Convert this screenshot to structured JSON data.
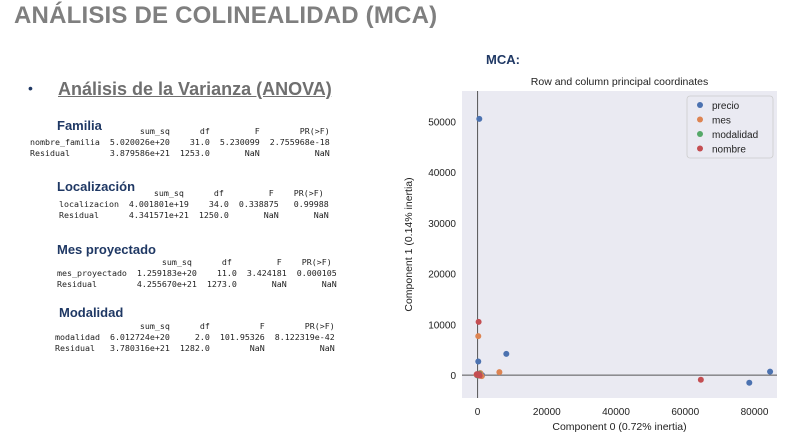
{
  "main_title": "ANÁLISIS DE COLINEALIDAD (MCA)",
  "bullet": "•",
  "subtitle": "Análisis de la Varianza (ANOVA)",
  "sections": [
    {
      "title": "Familia",
      "table": "                      sum_sq      df         F        PR(>F)\nnombre_familia  5.020026e+20    31.0  5.230099  2.755968e-18\nResidual        3.879586e+21  1253.0       NaN           NaN"
    },
    {
      "title": "Localización",
      "table": "                   sum_sq      df         F    PR(>F)\nlocalizacion  4.001801e+19    34.0  0.338875   0.99988\nResidual      4.341571e+21  1250.0       NaN       NaN"
    },
    {
      "title": "Mes proyectado",
      "table": "                     sum_sq      df         F    PR(>F)\nmes_proyectado  1.259183e+20    11.0  3.424181  0.000105\nResidual        4.255670e+21  1273.0       NaN       NaN"
    },
    {
      "title": "Modalidad",
      "table": "                 sum_sq      df          F        PR(>F)\nmodalidad  6.012724e+20     2.0  101.95326  8.122319e-42\nResidual   3.780316e+21  1282.0        NaN           NaN"
    }
  ],
  "mca_label": "MCA:",
  "chart_data": {
    "type": "scatter",
    "title": "Row and column principal coordinates",
    "xlabel": "Component 0 (0.72% inertia)",
    "ylabel": "Component 1 (0.14% inertia)",
    "xlim": [
      -4500,
      86500
    ],
    "ylim": [
      -4500,
      56000
    ],
    "xticks": [
      0,
      20000,
      40000,
      60000,
      80000
    ],
    "yticks": [
      0,
      10000,
      20000,
      30000,
      40000,
      50000
    ],
    "grid": false,
    "legend_position": "top-right",
    "background": "#eaeaf2",
    "series": [
      {
        "name": "precio",
        "color": "#4c72b0",
        "points": [
          [
            500,
            50500
          ],
          [
            200,
            2700
          ],
          [
            8300,
            4200
          ],
          [
            200,
            200
          ],
          [
            -200,
            0
          ],
          [
            700,
            300
          ],
          [
            1300,
            0
          ],
          [
            78500,
            -1500
          ],
          [
            84500,
            700
          ]
        ]
      },
      {
        "name": "mes",
        "color": "#dd8452",
        "points": [
          [
            200,
            7700
          ],
          [
            6300,
            600
          ],
          [
            1200,
            -200
          ],
          [
            500,
            0
          ],
          [
            -300,
            100
          ],
          [
            800,
            400
          ]
        ]
      },
      {
        "name": "modalidad",
        "color": "#55a868",
        "points": [
          [
            300,
            100
          ],
          [
            100,
            -100
          ],
          [
            500,
            300
          ]
        ]
      },
      {
        "name": "nombre",
        "color": "#c44e52",
        "points": [
          [
            300,
            10500
          ],
          [
            0,
            0
          ],
          [
            -200,
            200
          ],
          [
            600,
            -100
          ],
          [
            64500,
            -900
          ],
          [
            400,
            200
          ]
        ]
      }
    ]
  }
}
